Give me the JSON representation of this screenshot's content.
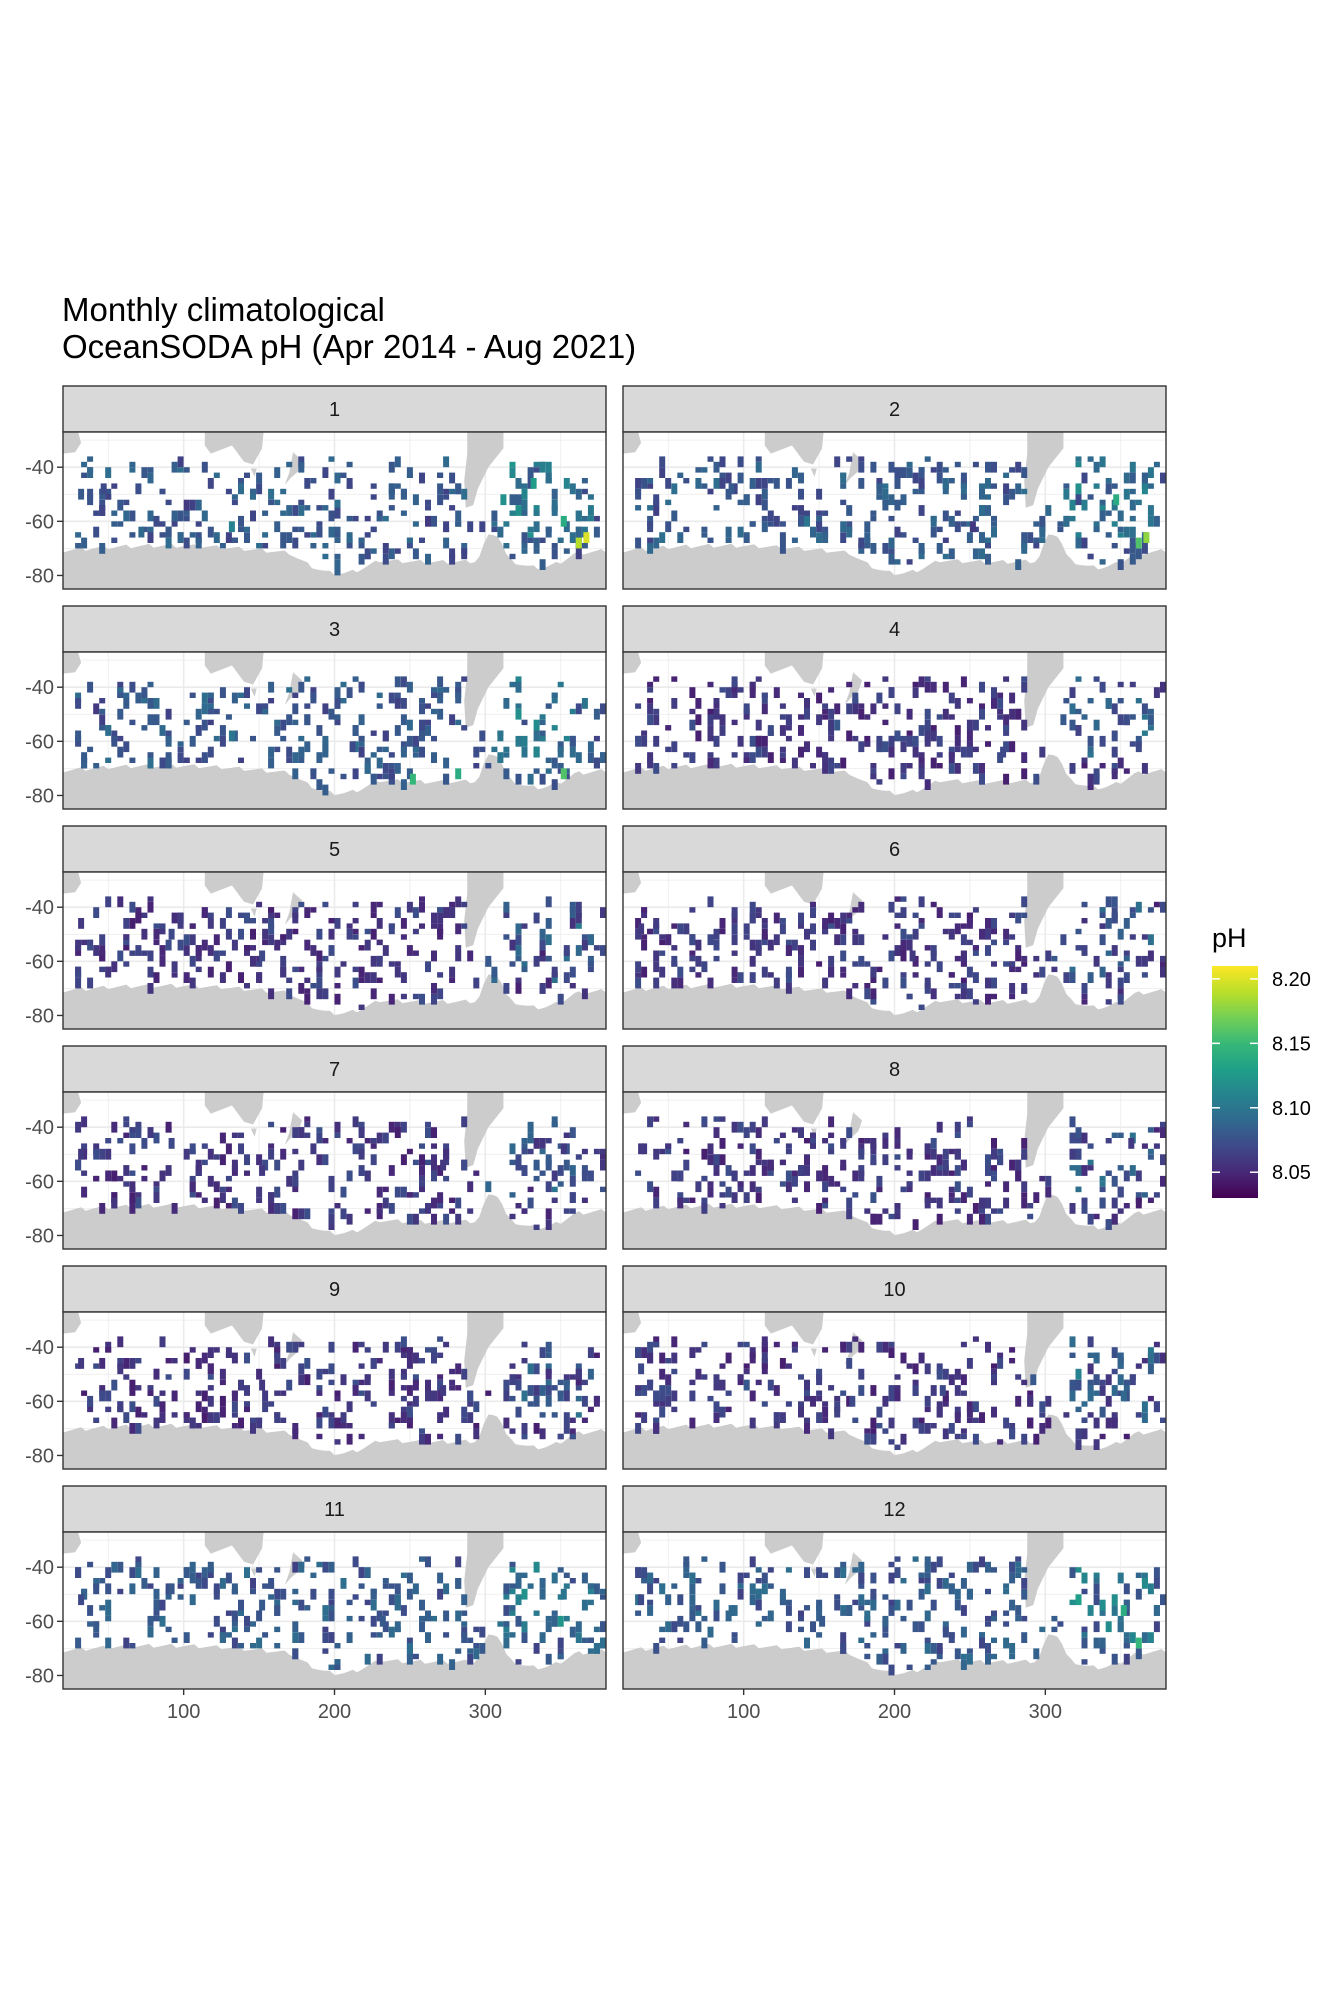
{
  "chart_data": {
    "type": "heatmap",
    "title": "Monthly climatological\nOceanSODA pH (Apr 2014 - Aug 2021)",
    "title_lines": [
      "Monthly climatological",
      "OceanSODA pH (Apr 2014 - Aug 2021)"
    ],
    "xlabel": "",
    "ylabel": "",
    "xlim": [
      20,
      380
    ],
    "ylim": [
      -85,
      -27
    ],
    "x_ticks": [
      100,
      200,
      300
    ],
    "y_ticks": [
      -40,
      -60,
      -80
    ],
    "grid": true,
    "facet_by": "month",
    "panels": [
      "1",
      "2",
      "3",
      "4",
      "5",
      "6",
      "7",
      "8",
      "9",
      "10",
      "11",
      "12"
    ],
    "legend": {
      "title": "pH",
      "position": "right",
      "range": [
        8.03,
        8.21
      ],
      "ticks": [
        8.05,
        8.1,
        8.15,
        8.2
      ],
      "tick_labels": [
        "8.05",
        "8.10",
        "8.15",
        "8.20"
      ],
      "colormap": "viridis"
    },
    "colors": {
      "land": "#cccccc",
      "panel_background": "#ffffff",
      "strip_background": "#d9d9d9",
      "grid": "#ebebeb",
      "border": "#333333",
      "viridis": [
        "#440154",
        "#482878",
        "#3e4989",
        "#31688e",
        "#26828e",
        "#1f9e89",
        "#35b779",
        "#6ece58",
        "#b5de2b",
        "#fde725"
      ]
    },
    "cell_size": [
      4,
      2
    ],
    "sample_cells": {
      "1": [
        [
          30,
          -48,
          8.08
        ],
        [
          45,
          -46,
          8.07
        ],
        [
          70,
          -62,
          8.09
        ],
        [
          100,
          -52,
          8.06
        ],
        [
          130,
          -60,
          8.11
        ],
        [
          200,
          -55,
          8.07
        ],
        [
          260,
          -58,
          8.06
        ],
        [
          310,
          -50,
          8.12
        ],
        [
          330,
          -44,
          8.13
        ],
        [
          360,
          -66,
          8.19
        ],
        [
          365,
          -64,
          8.2
        ],
        [
          350,
          -58,
          8.14
        ]
      ],
      "2": [
        [
          40,
          -50,
          8.07
        ],
        [
          90,
          -46,
          8.08
        ],
        [
          140,
          -58,
          8.1
        ],
        [
          200,
          -52,
          8.08
        ],
        [
          250,
          -60,
          8.06
        ],
        [
          300,
          -54,
          8.09
        ],
        [
          320,
          -46,
          8.12
        ],
        [
          345,
          -50,
          8.14
        ],
        [
          360,
          -66,
          8.16
        ],
        [
          365,
          -64,
          8.18
        ]
      ],
      "3": [
        [
          40,
          -46,
          8.06
        ],
        [
          80,
          -50,
          8.08
        ],
        [
          130,
          -56,
          8.1
        ],
        [
          210,
          -60,
          8.07
        ],
        [
          250,
          -72,
          8.15
        ],
        [
          280,
          -70,
          8.14
        ],
        [
          320,
          -48,
          8.12
        ],
        [
          350,
          -70,
          8.16
        ],
        [
          360,
          -46,
          8.07
        ]
      ],
      "4": [
        [
          40,
          -50,
          8.06
        ],
        [
          100,
          -46,
          8.07
        ],
        [
          160,
          -52,
          8.08
        ],
        [
          220,
          -58,
          8.06
        ],
        [
          270,
          -62,
          8.07
        ],
        [
          310,
          -50,
          8.08
        ],
        [
          340,
          -44,
          8.09
        ],
        [
          360,
          -60,
          8.07
        ]
      ],
      "5": [
        [
          30,
          -44,
          8.06
        ],
        [
          90,
          -48,
          8.07
        ],
        [
          150,
          -56,
          8.07
        ],
        [
          220,
          -52,
          8.06
        ],
        [
          260,
          -60,
          8.07
        ],
        [
          300,
          -58,
          8.08
        ],
        [
          320,
          -46,
          8.09
        ],
        [
          360,
          -42,
          8.06
        ]
      ],
      "6": [
        [
          30,
          -46,
          8.06
        ],
        [
          80,
          -52,
          8.07
        ],
        [
          140,
          -48,
          8.06
        ],
        [
          210,
          -56,
          8.06
        ],
        [
          260,
          -54,
          8.07
        ],
        [
          310,
          -50,
          8.07
        ],
        [
          340,
          -44,
          8.08
        ],
        [
          360,
          -58,
          8.06
        ]
      ],
      "7": [
        [
          30,
          -48,
          8.06
        ],
        [
          90,
          -44,
          8.07
        ],
        [
          150,
          -54,
          8.06
        ],
        [
          220,
          -56,
          8.06
        ],
        [
          270,
          -52,
          8.06
        ],
        [
          320,
          -50,
          8.07
        ],
        [
          350,
          -46,
          8.06
        ]
      ],
      "8": [
        [
          30,
          -46,
          8.06
        ],
        [
          80,
          -50,
          8.07
        ],
        [
          140,
          -54,
          8.06
        ],
        [
          220,
          -56,
          8.06
        ],
        [
          280,
          -52,
          8.06
        ],
        [
          320,
          -48,
          8.07
        ],
        [
          355,
          -44,
          8.06
        ]
      ],
      "9": [
        [
          30,
          -44,
          8.06
        ],
        [
          100,
          -48,
          8.07
        ],
        [
          150,
          -52,
          8.06
        ],
        [
          220,
          -56,
          8.06
        ],
        [
          270,
          -54,
          8.06
        ],
        [
          320,
          -52,
          8.07
        ],
        [
          360,
          -48,
          8.06
        ]
      ],
      "10": [
        [
          30,
          -46,
          8.07
        ],
        [
          100,
          -52,
          8.08
        ],
        [
          170,
          -58,
          8.07
        ],
        [
          230,
          -54,
          8.07
        ],
        [
          290,
          -50,
          8.08
        ],
        [
          320,
          -48,
          8.11
        ],
        [
          350,
          -56,
          8.09
        ]
      ],
      "11": [
        [
          30,
          -50,
          8.07
        ],
        [
          90,
          -46,
          8.08
        ],
        [
          150,
          -52,
          8.08
        ],
        [
          230,
          -58,
          8.08
        ],
        [
          280,
          -56,
          8.09
        ],
        [
          320,
          -50,
          8.11
        ],
        [
          350,
          -48,
          8.1
        ]
      ],
      "12": [
        [
          30,
          -50,
          8.07
        ],
        [
          90,
          -54,
          8.09
        ],
        [
          150,
          -58,
          8.08
        ],
        [
          220,
          -56,
          8.09
        ],
        [
          280,
          -54,
          8.08
        ],
        [
          320,
          -50,
          8.13
        ],
        [
          350,
          -54,
          8.14
        ],
        [
          360,
          -66,
          8.15
        ]
      ]
    }
  }
}
